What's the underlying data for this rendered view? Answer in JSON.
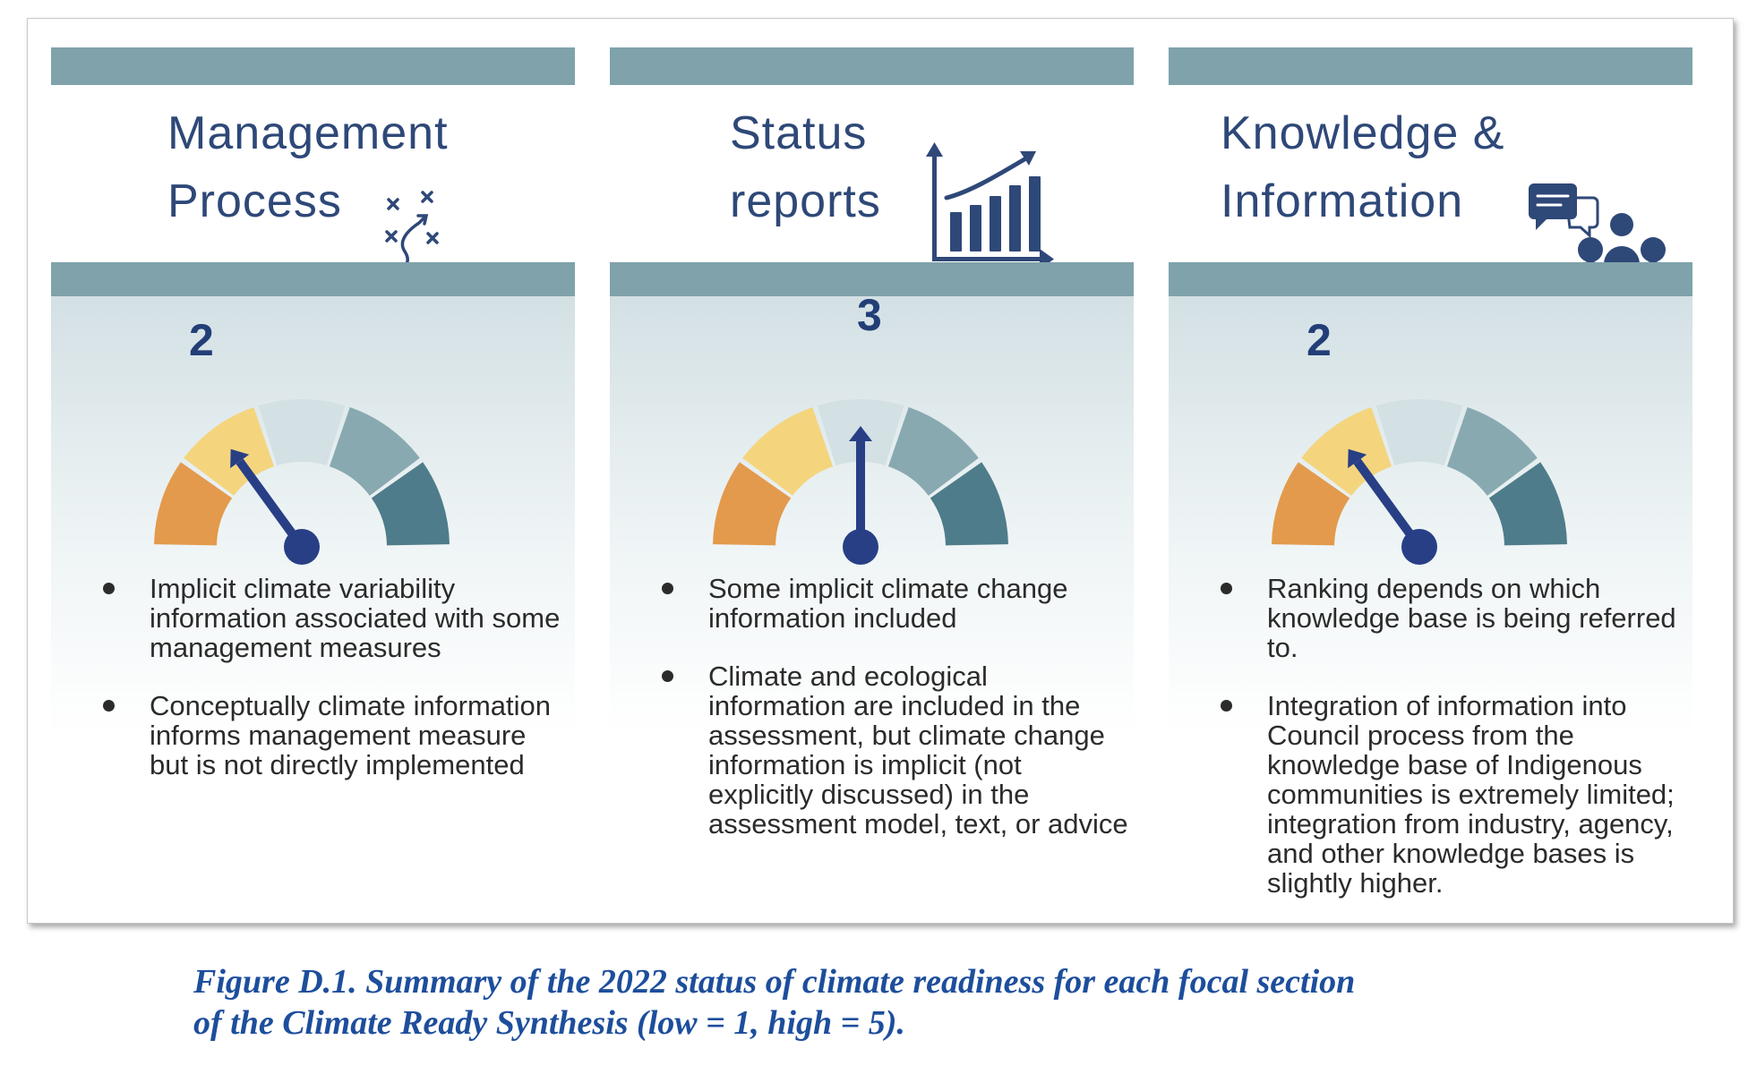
{
  "panels": [
    {
      "title_lines": [
        "Management",
        "Process"
      ],
      "icon": "playbook-strategy-icon",
      "score": "2",
      "score_value": 2,
      "bullets": [
        "Implicit climate variability information associated with some management measures",
        "Conceptually climate information informs management measure but is not directly implemented"
      ]
    },
    {
      "title_lines": [
        "Status",
        "reports"
      ],
      "icon": "bar-chart-rising-icon",
      "score": "3",
      "score_value": 3,
      "bullets": [
        "Some implicit climate change information included",
        "Climate and ecological information are included in the assessment, but climate change information is implicit (not explicitly discussed) in the assessment model, text, or advice"
      ]
    },
    {
      "title_lines": [
        "Knowledge &",
        "Information"
      ],
      "icon": "people-discussion-icon",
      "score": "2",
      "score_value": 2,
      "bullets": [
        "Ranking depends on which knowledge base is being referred to.",
        "Integration of information into Council process from the knowledge base of Indigenous communities is extremely limited; integration from industry, agency, and other knowledge bases is slightly higher."
      ]
    }
  ],
  "gauge": {
    "scale_min": 1,
    "scale_max": 5,
    "segment_colors": [
      "#e39a4c",
      "#f4d57e",
      "#d3e0e4",
      "#89a9b1",
      "#4f7c8a"
    ],
    "needle_color": "#283f86"
  },
  "colors": {
    "band": "#7fa2ab",
    "title": "#2e4878",
    "caption": "#1d4e9c"
  },
  "caption_lines": [
    "Figure D.1. Summary of the 2022 status of climate readiness for each focal section",
    "of the Climate Ready Synthesis (low = 1, high = 5)."
  ]
}
